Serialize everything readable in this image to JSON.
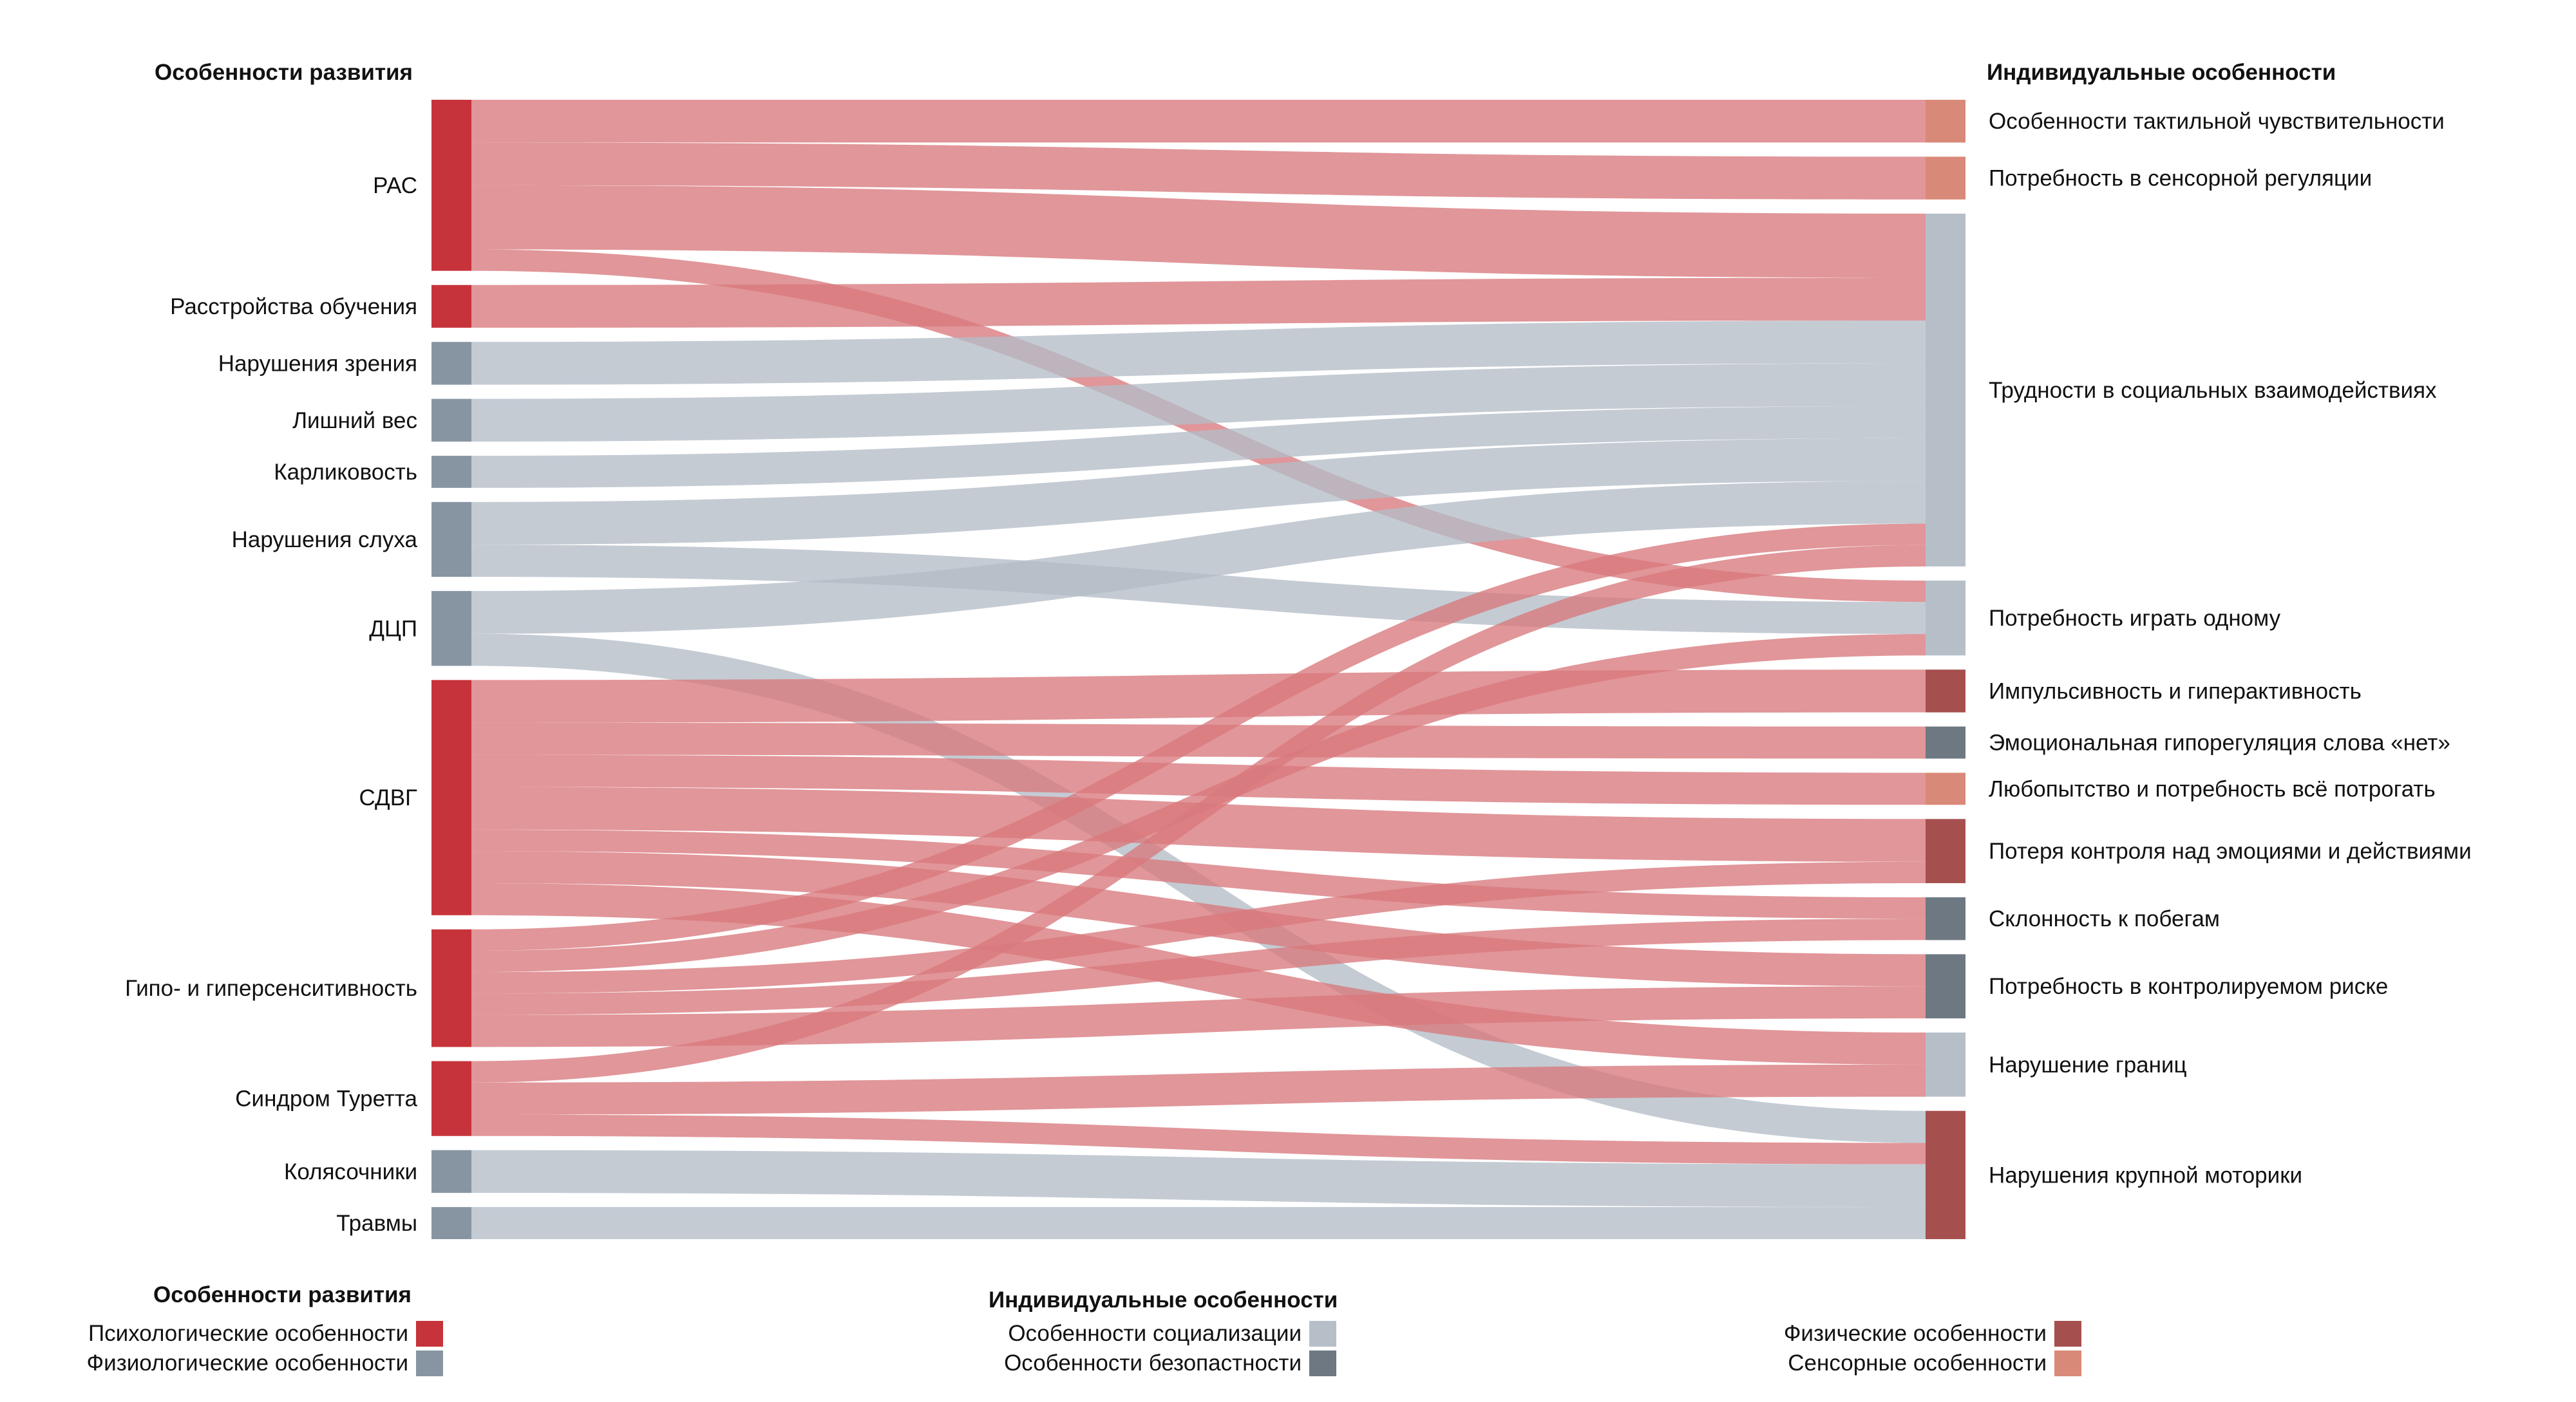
{
  "chart_data": {
    "type": "sankey",
    "left_header": "Особенности развития",
    "right_header": "Индивидуальные особенности",
    "colors": {
      "psych": "#c7333a",
      "phys": "#8795a3",
      "social": "#b6bfc8",
      "safety": "#6d7882",
      "physical": "#a5504f",
      "sensory": "#d98978",
      "link_red": "#d9787c",
      "link_gray": "#b4bdc7"
    },
    "sources": [
      {
        "id": "ras",
        "label": "РАС",
        "group": "psych"
      },
      {
        "id": "learn",
        "label": "Расстройства обучения",
        "group": "psych"
      },
      {
        "id": "vision",
        "label": "Нарушения зрения",
        "group": "phys"
      },
      {
        "id": "weight",
        "label": "Лишний вес",
        "group": "phys"
      },
      {
        "id": "dwarf",
        "label": "Карликовость",
        "group": "phys"
      },
      {
        "id": "hearing",
        "label": "Нарушения слуха",
        "group": "phys"
      },
      {
        "id": "dcp",
        "label": "ДЦП",
        "group": "phys"
      },
      {
        "id": "adhd",
        "label": "СДВГ",
        "group": "psych"
      },
      {
        "id": "sens",
        "label": "Гипо- и гиперсенситивность",
        "group": "psych"
      },
      {
        "id": "tourette",
        "label": "Синдром Туретта",
        "group": "psych"
      },
      {
        "id": "wheel",
        "label": "Колясочники",
        "group": "phys"
      },
      {
        "id": "trauma",
        "label": "Травмы",
        "group": "phys"
      }
    ],
    "targets": [
      {
        "id": "tactile",
        "label": "Особенности тактильной чувствительности",
        "group": "sensory"
      },
      {
        "id": "sensreg",
        "label": "Потребность в сенсорной регуляции",
        "group": "sensory"
      },
      {
        "id": "social",
        "label": "Трудности в социальных взаимодействиях",
        "group": "social"
      },
      {
        "id": "alone",
        "label": "Потребность играть одному",
        "group": "social"
      },
      {
        "id": "impulse",
        "label": "Импульсивность и гиперактивность",
        "group": "physical"
      },
      {
        "id": "emo",
        "label": "Эмоциональная гипорегуляция слова «нет»",
        "group": "safety"
      },
      {
        "id": "curious",
        "label": "Любопытство и потребность всё потрогать",
        "group": "sensory"
      },
      {
        "id": "control",
        "label": "Потеря контроля над эмоциями и действиями",
        "group": "physical"
      },
      {
        "id": "escape",
        "label": "Склонность к побегам",
        "group": "safety"
      },
      {
        "id": "risk",
        "label": "Потребность в контролируемом риске",
        "group": "safety"
      },
      {
        "id": "bound",
        "label": "Нарушение границ",
        "group": "social"
      },
      {
        "id": "motor",
        "label": "Нарушения крупной моторики",
        "group": "physical"
      }
    ],
    "links": [
      {
        "source": "ras",
        "target": "tactile",
        "value": 2
      },
      {
        "source": "ras",
        "target": "sensreg",
        "value": 2
      },
      {
        "source": "ras",
        "target": "social",
        "value": 3
      },
      {
        "source": "ras",
        "target": "alone",
        "value": 1
      },
      {
        "source": "learn",
        "target": "social",
        "value": 2
      },
      {
        "source": "vision",
        "target": "social",
        "value": 2
      },
      {
        "source": "weight",
        "target": "social",
        "value": 2
      },
      {
        "source": "dwarf",
        "target": "social",
        "value": 1.5
      },
      {
        "source": "hearing",
        "target": "social",
        "value": 2
      },
      {
        "source": "hearing",
        "target": "alone",
        "value": 1.5
      },
      {
        "source": "dcp",
        "target": "social",
        "value": 2
      },
      {
        "source": "dcp",
        "target": "motor",
        "value": 1.5
      },
      {
        "source": "adhd",
        "target": "impulse",
        "value": 2
      },
      {
        "source": "adhd",
        "target": "emo",
        "value": 1.5
      },
      {
        "source": "adhd",
        "target": "curious",
        "value": 1.5
      },
      {
        "source": "adhd",
        "target": "control",
        "value": 2
      },
      {
        "source": "adhd",
        "target": "escape",
        "value": 1
      },
      {
        "source": "adhd",
        "target": "risk",
        "value": 1.5
      },
      {
        "source": "adhd",
        "target": "bound",
        "value": 1.5
      },
      {
        "source": "sens",
        "target": "social",
        "value": 1
      },
      {
        "source": "sens",
        "target": "alone",
        "value": 1
      },
      {
        "source": "sens",
        "target": "control",
        "value": 1
      },
      {
        "source": "sens",
        "target": "escape",
        "value": 1
      },
      {
        "source": "sens",
        "target": "risk",
        "value": 1.5
      },
      {
        "source": "tourette",
        "target": "social",
        "value": 1
      },
      {
        "source": "tourette",
        "target": "bound",
        "value": 1.5
      },
      {
        "source": "tourette",
        "target": "motor",
        "value": 1
      },
      {
        "source": "wheel",
        "target": "motor",
        "value": 2
      },
      {
        "source": "trauma",
        "target": "motor",
        "value": 1.5
      }
    ]
  },
  "legend": {
    "dev": {
      "title": "Особенности развития",
      "items": [
        {
          "label": "Психологические особенности",
          "color": "#c7333a"
        },
        {
          "label": "Физиологические особенности",
          "color": "#8795a3"
        }
      ]
    },
    "ind": {
      "title": "Индивидуальные особенности",
      "items": [
        {
          "label": "Особенности социализации",
          "color": "#b6bfc8"
        },
        {
          "label": "Особенности безопастности",
          "color": "#6d7882"
        }
      ]
    },
    "phys": {
      "items": [
        {
          "label": "Физические особенности",
          "color": "#a5504f"
        },
        {
          "label": "Сенсорные особенности",
          "color": "#d98978"
        }
      ]
    }
  }
}
